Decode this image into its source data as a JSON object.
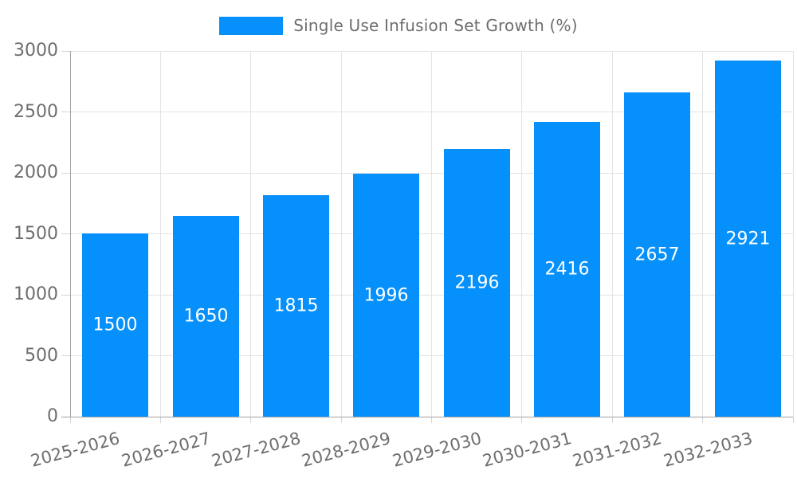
{
  "chart_data": {
    "type": "bar",
    "title": "Single Use Infusion Set Growth (%)",
    "legend": {
      "label": "Single Use Infusion Set Growth (%)",
      "position": "top"
    },
    "categories": [
      "2025-2026",
      "2026-2027",
      "2027-2028",
      "2028-2029",
      "2029-2030",
      "2030-2031",
      "2031-2032",
      "2032-2033"
    ],
    "values": [
      1500,
      1650,
      1815,
      1996,
      2196,
      2416,
      2657,
      2921
    ],
    "value_labels": [
      "1500",
      "1650",
      "1815",
      "1996",
      "2196",
      "2416",
      "2657",
      "2921"
    ],
    "xlabel": "",
    "ylabel": "",
    "ylim": [
      0,
      3000
    ],
    "yticks": [
      0,
      500,
      1000,
      1500,
      2000,
      2500,
      3000
    ],
    "grid": true,
    "legend_position": "top",
    "x_label_rotation_deg": -15,
    "colors": {
      "bar": "#0690FB",
      "value_label": "#ffffff",
      "grid": "#e3e3e3",
      "tick": "#d6d6d6",
      "axis_line": "#a3a3a3",
      "axis_text": "#6e6e6e",
      "background": "#ffffff"
    }
  }
}
